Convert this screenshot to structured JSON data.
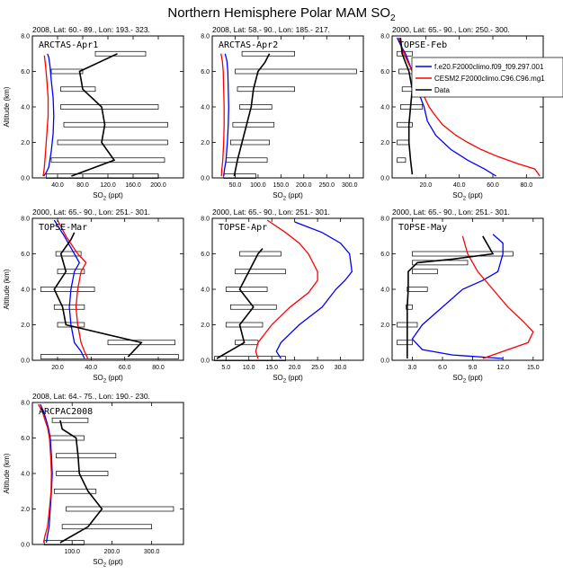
{
  "figure": {
    "title_main": "Northern Hemisphere Polar MAM SO",
    "title_sub": "2",
    "colors": {
      "model1": "#0000ff",
      "model2": "#ff0000",
      "data": "#000000"
    },
    "legend": {
      "model1": "f.e20.F2000climo.f09_f09.297.001",
      "model2": "CESM2.F2000climo.C96.C96.mg1",
      "data": "Data"
    },
    "axes_text": {
      "ylabel": "Altitude (km)",
      "xlabel_main": "SO",
      "xlabel_sub": "2",
      "xlabel_unit": " (ppt)"
    }
  },
  "chart_data": [
    {
      "type": "line",
      "header": "2008, Lat:  60.- 89., Lon: 193.- 323.",
      "title": "ARCTAS-Apr1",
      "xlim": [
        0,
        240
      ],
      "ylim": [
        0,
        8
      ],
      "xticks": [
        40,
        80,
        120,
        160,
        200
      ],
      "yticks": [
        0,
        2,
        4,
        6,
        8
      ],
      "series": [
        {
          "name": "model1",
          "x": [
            18,
            22,
            26,
            30,
            33,
            34,
            33,
            30,
            28,
            26,
            24
          ],
          "y": [
            0.1,
            0.3,
            0.6,
            1.5,
            2.5,
            3.5,
            4.5,
            5.5,
            6.3,
            6.8,
            7.0
          ]
        },
        {
          "name": "model2",
          "x": [
            17,
            18,
            19,
            21,
            23,
            25,
            25,
            23,
            21,
            19
          ],
          "y": [
            0.1,
            0.3,
            0.6,
            1.5,
            2.5,
            3.5,
            4.5,
            5.5,
            6.3,
            6.9
          ]
        },
        {
          "name": "data",
          "x": [
            62,
            130,
            110,
            115,
            110,
            80,
            75,
            135
          ],
          "y": [
            0.1,
            1.0,
            2.0,
            3.0,
            4.0,
            5.0,
            6.0,
            7.0
          ]
        }
      ],
      "ranges": [
        {
          "y": 0.1,
          "lo": 22,
          "hi": 200
        },
        {
          "y": 1.0,
          "lo": 30,
          "hi": 210
        },
        {
          "y": 2.0,
          "lo": 40,
          "hi": 215
        },
        {
          "y": 3.0,
          "lo": 50,
          "hi": 215
        },
        {
          "y": 4.0,
          "lo": 45,
          "hi": 200
        },
        {
          "y": 5.0,
          "lo": 45,
          "hi": 100
        },
        {
          "y": 6.0,
          "lo": 30,
          "hi": 80
        },
        {
          "y": 7.0,
          "lo": 100,
          "hi": 180
        }
      ]
    },
    {
      "type": "line",
      "header": "2008, Lat:  58.- 90., Lon: 185.- 217.",
      "title": "ARCTAS-Apr2",
      "xlim": [
        0,
        330
      ],
      "ylim": [
        0,
        8
      ],
      "xticks": [
        50,
        100,
        150,
        200,
        250,
        300
      ],
      "yticks": [
        0,
        2,
        4,
        6,
        8
      ],
      "series": [
        {
          "name": "model1",
          "x": [
            25,
            27,
            30,
            33,
            35,
            36,
            35,
            34,
            32,
            28
          ],
          "y": [
            0.1,
            0.5,
            1.0,
            2.0,
            3.0,
            4.0,
            5.0,
            6.0,
            6.6,
            7.0
          ]
        },
        {
          "name": "model2",
          "x": [
            20,
            21,
            23,
            25,
            26,
            26,
            25,
            24,
            22,
            19
          ],
          "y": [
            0.1,
            0.5,
            1.0,
            2.0,
            3.0,
            4.0,
            5.0,
            6.0,
            6.6,
            7.0
          ]
        },
        {
          "name": "data",
          "x": [
            48,
            55,
            65,
            75,
            85,
            90,
            100,
            115,
            125
          ],
          "y": [
            0.1,
            1.0,
            2.0,
            3.0,
            4.0,
            5.0,
            6.0,
            6.5,
            7.0
          ]
        }
      ],
      "ranges": [
        {
          "y": 0.1,
          "lo": 25,
          "hi": 95
        },
        {
          "y": 1.0,
          "lo": 30,
          "hi": 120
        },
        {
          "y": 2.0,
          "lo": 40,
          "hi": 125
        },
        {
          "y": 3.0,
          "lo": 45,
          "hi": 135
        },
        {
          "y": 4.0,
          "lo": 60,
          "hi": 130
        },
        {
          "y": 5.0,
          "lo": 55,
          "hi": 180
        },
        {
          "y": 6.0,
          "lo": 50,
          "hi": 315
        },
        {
          "y": 7.0,
          "lo": 65,
          "hi": 180
        }
      ]
    },
    {
      "type": "line",
      "header": "2000, Lat:  65.- 90., Lon: 250.- 300.",
      "title": "TOPSE-Feb",
      "xlim": [
        0,
        90
      ],
      "ylim": [
        0,
        8
      ],
      "xticks": [
        20,
        40,
        60,
        80
      ],
      "yticks": [
        0,
        2,
        4,
        6,
        8
      ],
      "series": [
        {
          "name": "model1",
          "x": [
            62,
            55,
            45,
            35,
            26,
            21,
            19,
            15,
            12,
            8,
            5,
            3
          ],
          "y": [
            0.1,
            0.5,
            1.0,
            1.6,
            2.4,
            3.2,
            4.0,
            5.0,
            6.0,
            7.0,
            7.5,
            7.9
          ]
        },
        {
          "name": "model2",
          "x": [
            88,
            85,
            75,
            63,
            53,
            45,
            38,
            30,
            25,
            22,
            17,
            12,
            7,
            4
          ],
          "y": [
            0.1,
            0.5,
            0.8,
            1.2,
            1.6,
            2.0,
            2.4,
            3.0,
            3.6,
            4.0,
            5.0,
            6.0,
            7.0,
            7.9
          ]
        },
        {
          "name": "data",
          "x": [
            12,
            11,
            10,
            10,
            11,
            12,
            10,
            8,
            6,
            5
          ],
          "y": [
            0.2,
            1.0,
            2.0,
            3.0,
            4.0,
            5.0,
            6.0,
            6.5,
            7.0,
            7.9
          ]
        }
      ],
      "ranges": [
        {
          "y": 1.0,
          "lo": 3,
          "hi": 8
        },
        {
          "y": 2.0,
          "lo": 3,
          "hi": 10
        },
        {
          "y": 3.0,
          "lo": 3,
          "hi": 12
        },
        {
          "y": 4.0,
          "lo": 5,
          "hi": 18
        },
        {
          "y": 5.0,
          "lo": 6,
          "hi": 20
        },
        {
          "y": 6.0,
          "lo": 4,
          "hi": 15
        },
        {
          "y": 7.0,
          "lo": 3,
          "hi": 12
        }
      ]
    },
    {
      "type": "line",
      "header": "2000, Lat:  65.- 90., Lon: 251.- 301.",
      "title": "TOPSE-Mar",
      "xlim": [
        5,
        95
      ],
      "ylim": [
        0,
        8
      ],
      "xticks": [
        20,
        40,
        60,
        80
      ],
      "yticks": [
        0,
        2,
        4,
        6,
        8
      ],
      "series": [
        {
          "name": "model1",
          "x": [
            36,
            34,
            30,
            28,
            27,
            28,
            30,
            33,
            30,
            24,
            18
          ],
          "y": [
            0.1,
            0.5,
            1.0,
            2.0,
            3.0,
            4.0,
            5.0,
            5.5,
            6.0,
            7.0,
            7.9
          ]
        },
        {
          "name": "model2",
          "x": [
            38,
            36,
            34,
            32,
            31,
            32,
            34,
            37,
            32,
            25,
            20
          ],
          "y": [
            0.1,
            0.5,
            1.0,
            2.0,
            3.0,
            4.0,
            5.0,
            5.5,
            6.0,
            7.0,
            7.9
          ]
        },
        {
          "name": "data",
          "x": [
            62,
            70,
            25,
            23,
            18,
            25,
            22,
            28,
            30
          ],
          "y": [
            0.2,
            1.0,
            2.0,
            3.0,
            4.0,
            5.0,
            6.0,
            6.8,
            7.2
          ]
        }
      ],
      "ranges": [
        {
          "y": 0.2,
          "lo": 10,
          "hi": 92
        },
        {
          "y": 1.0,
          "lo": 50,
          "hi": 90
        },
        {
          "y": 2.0,
          "lo": 20,
          "hi": 36
        },
        {
          "y": 3.0,
          "lo": 18,
          "hi": 36
        },
        {
          "y": 4.0,
          "lo": 10,
          "hi": 42
        },
        {
          "y": 5.0,
          "lo": 20,
          "hi": 36
        },
        {
          "y": 6.0,
          "lo": 19,
          "hi": 34
        }
      ]
    },
    {
      "type": "line",
      "header": "2000, Lat:  65.- 90., Lon: 251.- 301.",
      "title": "TOPSE-Apr",
      "xlim": [
        2,
        35
      ],
      "ylim": [
        0,
        8
      ],
      "xticks": [
        5,
        10,
        15,
        20,
        25,
        30
      ],
      "yticks": [
        0,
        2,
        4,
        6,
        8
      ],
      "series": [
        {
          "name": "model1",
          "x": [
            17,
            16,
            17,
            21,
            26,
            29,
            31,
            32.5,
            32,
            30,
            26,
            20
          ],
          "y": [
            0.1,
            0.5,
            1.0,
            2.0,
            3.0,
            4.0,
            4.5,
            5.0,
            6.0,
            6.6,
            7.2,
            7.8
          ]
        },
        {
          "name": "model2",
          "x": [
            12,
            11.5,
            12,
            15,
            19,
            23,
            25,
            25,
            23,
            21,
            18,
            14
          ],
          "y": [
            0.1,
            0.5,
            1.0,
            2.0,
            3.0,
            3.8,
            4.5,
            5.0,
            6.0,
            6.6,
            7.2,
            7.9
          ]
        },
        {
          "name": "data",
          "x": [
            3,
            9,
            8,
            11,
            8,
            10,
            12,
            13
          ],
          "y": [
            0.1,
            1.0,
            2.0,
            3.0,
            4.0,
            5.0,
            6.0,
            6.3
          ]
        }
      ],
      "ranges": [
        {
          "y": 0.1,
          "lo": 2.5,
          "hi": 18
        },
        {
          "y": 1.0,
          "lo": 7,
          "hi": 12
        },
        {
          "y": 2.0,
          "lo": 5,
          "hi": 13
        },
        {
          "y": 3.0,
          "lo": 6,
          "hi": 16
        },
        {
          "y": 4.0,
          "lo": 5,
          "hi": 14
        },
        {
          "y": 5.0,
          "lo": 7,
          "hi": 18
        },
        {
          "y": 6.0,
          "lo": 8,
          "hi": 17
        }
      ]
    },
    {
      "type": "line",
      "header": "2000, Lat:  65.- 90., Lon: 251.- 301.",
      "title": "TOPSE-May",
      "xlim": [
        1,
        16
      ],
      "ylim": [
        0,
        8
      ],
      "xticks": [
        3,
        6,
        9,
        12,
        15
      ],
      "yticks": [
        0,
        2,
        4,
        6,
        8
      ],
      "series": [
        {
          "name": "model1",
          "x": [
            12,
            7,
            4,
            3,
            4,
            6,
            8,
            10,
            11.5,
            12,
            12,
            11
          ],
          "y": [
            0.1,
            0.3,
            0.6,
            1.2,
            2.0,
            3.0,
            4.0,
            4.5,
            5.0,
            6.0,
            6.6,
            7.1
          ]
        },
        {
          "name": "model2",
          "x": [
            10,
            12,
            14.5,
            15,
            14,
            12.5,
            11,
            9.5,
            8.5,
            8
          ],
          "y": [
            0.1,
            0.5,
            1.0,
            1.6,
            2.2,
            3.0,
            4.0,
            5.0,
            6.0,
            7.0
          ]
        },
        {
          "name": "data",
          "x": [
            2.5,
            2.5,
            2.5,
            2.5,
            2.6,
            2.6,
            3.5,
            7,
            11,
            10
          ],
          "y": [
            0.1,
            1.0,
            2.0,
            3.0,
            4.0,
            5.0,
            5.5,
            5.7,
            6.0,
            7.0
          ]
        }
      ],
      "ranges": [
        {
          "y": 1.0,
          "lo": 1.5,
          "hi": 3.0
        },
        {
          "y": 2.0,
          "lo": 1.5,
          "hi": 3.5
        },
        {
          "y": 3.0,
          "lo": 2.4,
          "hi": 3.0
        },
        {
          "y": 4.0,
          "lo": 2.5,
          "hi": 4.5
        },
        {
          "y": 5.0,
          "lo": 3,
          "hi": 5.5
        },
        {
          "y": 5.5,
          "lo": 3,
          "hi": 8.5
        },
        {
          "y": 6.0,
          "lo": 3,
          "hi": 13
        }
      ]
    },
    {
      "type": "line",
      "header": "2008, Lat:  64.- 75., Lon: 190.- 230.",
      "title": "ARCPAC2008",
      "xlim": [
        0,
        380
      ],
      "ylim": [
        0,
        8
      ],
      "xticks": [
        100,
        200,
        300
      ],
      "yticks": [
        0,
        2,
        4,
        6,
        8
      ],
      "series": [
        {
          "name": "model1",
          "x": [
            35,
            38,
            42,
            45,
            48,
            50,
            48,
            45,
            40,
            35,
            28,
            20
          ],
          "y": [
            0.1,
            0.5,
            1.0,
            2.0,
            3.0,
            4.0,
            5.0,
            6.0,
            6.6,
            7.0,
            7.5,
            7.9
          ]
        },
        {
          "name": "model2",
          "x": [
            28,
            32,
            38,
            43,
            47,
            48,
            46,
            43,
            38,
            32,
            25,
            15
          ],
          "y": [
            0.1,
            0.5,
            1.0,
            2.0,
            3.0,
            4.0,
            5.0,
            6.0,
            6.6,
            7.0,
            7.5,
            7.9
          ]
        },
        {
          "name": "data",
          "x": [
            70,
            140,
            175,
            140,
            118,
            115,
            110,
            75,
            70
          ],
          "y": [
            0.1,
            1.0,
            2.0,
            3.0,
            4.0,
            5.0,
            6.0,
            6.5,
            7.0
          ]
        }
      ],
      "ranges": [
        {
          "y": 0.1,
          "lo": 30,
          "hi": 130
        },
        {
          "y": 1.0,
          "lo": 75,
          "hi": 300
        },
        {
          "y": 2.0,
          "lo": 85,
          "hi": 355
        },
        {
          "y": 3.0,
          "lo": 55,
          "hi": 160
        },
        {
          "y": 4.0,
          "lo": 60,
          "hi": 190
        },
        {
          "y": 5.0,
          "lo": 60,
          "hi": 210
        },
        {
          "y": 6.0,
          "lo": 45,
          "hi": 130
        },
        {
          "y": 7.0,
          "lo": 50,
          "hi": 140
        }
      ]
    }
  ]
}
